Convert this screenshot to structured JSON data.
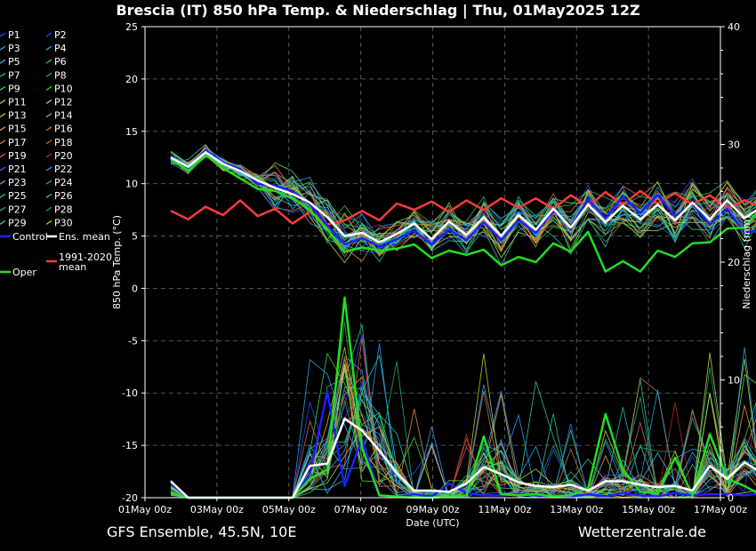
{
  "chart_data": {
    "type": "line",
    "title": "Brescia  (IT)  850 hPa Temp. & Niederschlag | Thu, 01May2025 12Z",
    "footer_left": "GFS Ensemble, 45.5N, 10E",
    "footer_right": "Wetterzentrale.de",
    "xlabel": "Date (UTC)",
    "ylabel_left": "850 hPa Temp. (°C)",
    "ylabel_right": "Niederschlag (mm)",
    "x_ticks": [
      "01May 00z",
      "03May 00z",
      "05May 00z",
      "07May 00z",
      "09May 00z",
      "11May 00z",
      "13May 00z",
      "15May 00z",
      "17May 00z"
    ],
    "ylim_left": [
      -20,
      25
    ],
    "y_ticks_left": [
      "25",
      "20",
      "15",
      "10",
      "5",
      "0",
      "-5",
      "-10",
      "-15",
      "-20"
    ],
    "ylim_right": [
      0,
      40
    ],
    "y_ticks_right": [
      "40",
      "30",
      "20",
      "10",
      "0"
    ],
    "grid": true,
    "legend_placement": "left outside",
    "legend": [
      [
        "P1",
        "#1e50ff"
      ],
      [
        "P2",
        "#2a4cff"
      ],
      [
        "P3",
        "#2ca0ff"
      ],
      [
        "P4",
        "#30a8ff"
      ],
      [
        "P5",
        "#29c3d6"
      ],
      [
        "P6",
        "#2ec8b0"
      ],
      [
        "P7",
        "#33cc99"
      ],
      [
        "P8",
        "#20b070"
      ],
      [
        "P9",
        "#2ede57"
      ],
      [
        "P10",
        "#3ee035"
      ],
      [
        "P11",
        "#bada55"
      ],
      [
        "P12",
        "#e0d040"
      ],
      [
        "P13",
        "#e6c23a"
      ],
      [
        "P14",
        "#e8a33c"
      ],
      [
        "P15",
        "#e89250"
      ],
      [
        "P16",
        "#d27a3c"
      ],
      [
        "P17",
        "#e8845a"
      ],
      [
        "P18",
        "#e06040"
      ],
      [
        "P19",
        "#e85a50"
      ],
      [
        "P20",
        "#b02828"
      ],
      [
        "P21",
        "#2b6cff"
      ],
      [
        "P22",
        "#2fa0ff"
      ],
      [
        "P23",
        "#4fb0ff"
      ],
      [
        "P24",
        "#2aa8d0"
      ],
      [
        "P25",
        "#2ad0c0"
      ],
      [
        "P26",
        "#2ed6a8"
      ],
      [
        "P27",
        "#30c070"
      ],
      [
        "P28",
        "#28a858"
      ],
      [
        "P29",
        "#6de050"
      ],
      [
        "P30",
        "#c8d020"
      ]
    ],
    "special_legend": [
      {
        "label": "Control",
        "color": "#1e1eff"
      },
      {
        "label": "Ens. mean",
        "color": "#ffffff"
      },
      {
        "label": "1991-2020 mean",
        "color": "#ff3b3b"
      },
      {
        "label": "Oper",
        "color": "#22dd22"
      }
    ],
    "day_offsets_of_12_steps": [
      0,
      0.5,
      1,
      1.5,
      2,
      2.5,
      3,
      3.5,
      4,
      4.5,
      5,
      5.5,
      6,
      6.5,
      7,
      7.5,
      8,
      8.5,
      9,
      9.5,
      10,
      10.5,
      11,
      11.5,
      12,
      12.5,
      13,
      13.5,
      14,
      14.5,
      15,
      15.5,
      16,
      16.5,
      17
    ],
    "series_temp": {
      "ens_mean": [
        12.5,
        11.6,
        13.0,
        11.9,
        11.2,
        10.3,
        9.6,
        9.0,
        8.2,
        6.8,
        5.0,
        5.3,
        4.4,
        5.2,
        6.2,
        4.7,
        6.4,
        5.1,
        6.8,
        5.0,
        7.0,
        5.6,
        7.6,
        5.8,
        8.0,
        6.3,
        7.9,
        6.6,
        8.0,
        6.5,
        8.2,
        6.6,
        8.4,
        6.7,
        7.8
      ],
      "clim_mean": [
        7.4,
        6.6,
        7.8,
        7.0,
        8.4,
        6.9,
        7.6,
        6.2,
        7.3,
        6.1,
        6.5,
        7.4,
        6.5,
        8.1,
        7.5,
        8.3,
        7.3,
        8.4,
        7.5,
        8.6,
        7.7,
        8.6,
        7.6,
        8.9,
        7.8,
        9.2,
        8.0,
        9.3,
        8.1,
        9.1,
        8.0,
        8.9,
        7.6,
        8.4,
        7.8
      ],
      "control": [
        12.6,
        11.5,
        13.2,
        12.0,
        11.4,
        10.0,
        9.8,
        9.3,
        8.0,
        6.0,
        4.2,
        4.8,
        4.0,
        4.7,
        5.5,
        4.2,
        5.6,
        4.6,
        6.3,
        4.6,
        6.5,
        5.3,
        7.4,
        5.9,
        8.5,
        6.7,
        8.8,
        7.2,
        8.9,
        6.9,
        8.1,
        6.1,
        7.6,
        5.3,
        5.6
      ],
      "oper": [
        12.4,
        11.2,
        12.9,
        11.5,
        10.5,
        9.5,
        9.3,
        8.6,
        7.5,
        5.6,
        3.5,
        3.9,
        3.6,
        3.8,
        4.2,
        2.9,
        3.6,
        3.2,
        3.7,
        2.2,
        3.0,
        2.5,
        4.3,
        3.5,
        5.4,
        1.6,
        2.6,
        1.6,
        3.6,
        3.0,
        4.3,
        4.4,
        5.7,
        5.8,
        7.8
      ]
    },
    "series_precip": {
      "ens_mean": [
        1.4,
        0,
        0,
        0,
        0,
        0,
        0,
        0,
        2.7,
        2.9,
        6.7,
        5.7,
        4.0,
        2.1,
        0.6,
        0.6,
        0.5,
        1.2,
        2.6,
        2.0,
        1.3,
        1.0,
        0.9,
        1.1,
        0.6,
        1.4,
        1.4,
        1.1,
        0.9,
        1.0,
        0.6,
        2.7,
        1.6,
        3.0,
        2.1
      ],
      "oper": [
        0.4,
        0,
        0,
        0,
        0,
        0,
        0,
        0,
        1.6,
        2.4,
        17.0,
        4.2,
        0.2,
        0.1,
        0,
        0,
        0.1,
        0.2,
        5.2,
        0.3,
        0.2,
        0.3,
        0.1,
        0.2,
        0.8,
        7.1,
        2.4,
        0.5,
        0.4,
        3.4,
        0.2,
        5.4,
        1.6,
        1.0,
        0.2
      ],
      "control": [
        1.2,
        0,
        0,
        0,
        0,
        0,
        0,
        0,
        2.0,
        9.0,
        1.0,
        5.0,
        0.2,
        0.1,
        0.3,
        0.1,
        1.2,
        0.4,
        0.2,
        0.2,
        0.3,
        0.2,
        0.1,
        0.1,
        0.3,
        0.1,
        0.4,
        0.2,
        0.1,
        0.4,
        0.2,
        0.3,
        0.3,
        0.2,
        0.4
      ]
    }
  }
}
